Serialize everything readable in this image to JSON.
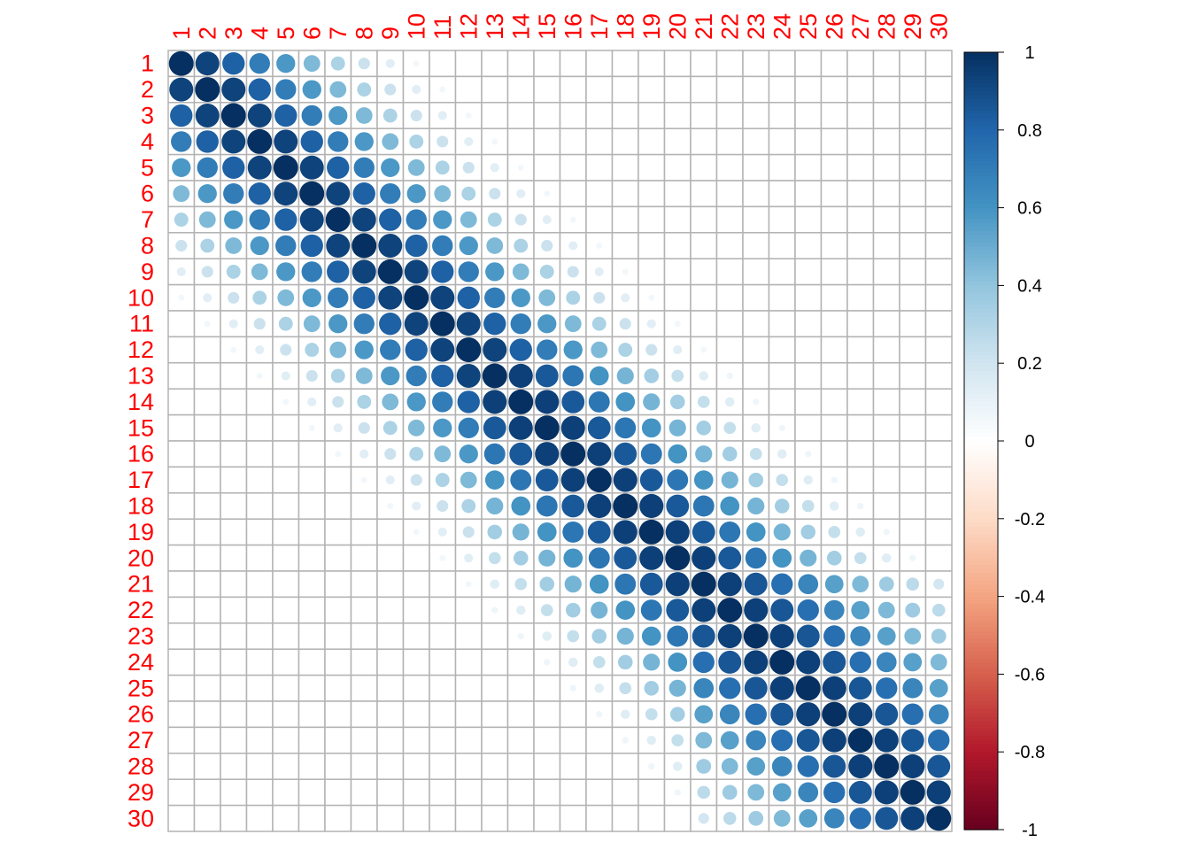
{
  "chart_data": {
    "type": "heatmap",
    "method": "circle",
    "title": "",
    "row_labels": [
      "1",
      "2",
      "3",
      "4",
      "5",
      "6",
      "7",
      "8",
      "9",
      "10",
      "11",
      "12",
      "13",
      "14",
      "15",
      "16",
      "17",
      "18",
      "19",
      "20",
      "21",
      "22",
      "23",
      "24",
      "25",
      "26",
      "27",
      "28",
      "29",
      "30"
    ],
    "col_labels": [
      "1",
      "2",
      "3",
      "4",
      "5",
      "6",
      "7",
      "8",
      "9",
      "10",
      "11",
      "12",
      "13",
      "14",
      "15",
      "16",
      "17",
      "18",
      "19",
      "20",
      "21",
      "22",
      "23",
      "24",
      "25",
      "26",
      "27",
      "28",
      "29",
      "30"
    ],
    "label_color": "#ff0000",
    "grid_color": "#b3b3b3",
    "band_profiles": {
      "note_none": "",
      "left_block_rows_1_12": [
        1.0,
        0.93,
        0.82,
        0.7,
        0.58,
        0.45,
        0.32,
        0.22,
        0.13,
        0.06,
        0.0
      ],
      "mid_block_rows_13_20": [
        1.0,
        0.94,
        0.85,
        0.73,
        0.6,
        0.47,
        0.35,
        0.24,
        0.14,
        0.07,
        0.0
      ],
      "right_block_rows_21_30": [
        1.0,
        0.94,
        0.86,
        0.76,
        0.66,
        0.55,
        0.45,
        0.36,
        0.27,
        0.19,
        0.12,
        0.0
      ]
    },
    "value_range": [
      -1,
      1
    ],
    "colorbar": {
      "ticks": [
        "1",
        "0.8",
        "0.6",
        "0.4",
        "0.2",
        "0",
        "-0.2",
        "-0.4",
        "-0.6",
        "-0.8",
        "-1"
      ],
      "tick_values": [
        1,
        0.8,
        0.6,
        0.4,
        0.2,
        0,
        -0.2,
        -0.4,
        -0.6,
        -0.8,
        -1
      ],
      "colors": [
        "#67001F",
        "#B2182B",
        "#D6604D",
        "#F4A582",
        "#FDDBC7",
        "#FFFFFF",
        "#D1E5F0",
        "#92C5DE",
        "#4393C3",
        "#2166AC",
        "#053061"
      ]
    }
  }
}
